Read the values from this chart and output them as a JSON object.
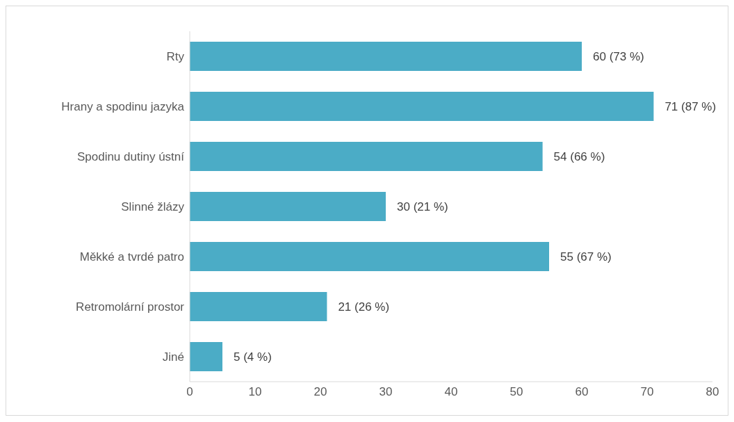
{
  "chart_data": {
    "type": "bar",
    "orientation": "horizontal",
    "categories": [
      "Rty",
      "Hrany a spodinu jazyka",
      "Spodinu dutiny ústní",
      "Slinné žlázy",
      "Měkké a tvrdé patro",
      "Retromolární prostor",
      "Jiné"
    ],
    "values": [
      60,
      71,
      54,
      30,
      55,
      21,
      5
    ],
    "value_labels": [
      "60 (73 %)",
      "71 (87 %)",
      "54 (66 %)",
      "30 (21 %)",
      "55 (67 %)",
      "21 (26 %)",
      "5 (4 %)"
    ],
    "color": "#4bacc6",
    "xlim": [
      0,
      80
    ],
    "xticks": [
      0,
      10,
      20,
      30,
      40,
      50,
      60,
      70,
      80
    ],
    "grid": false
  }
}
